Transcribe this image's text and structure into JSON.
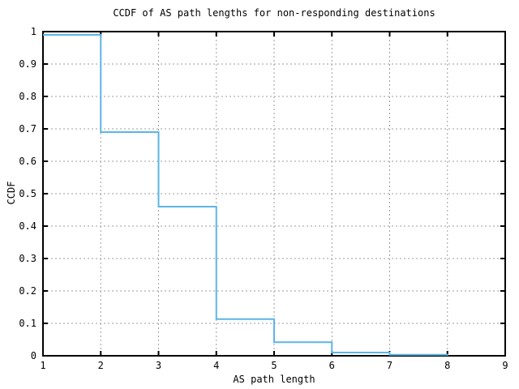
{
  "page": {
    "background": "#ffffff"
  },
  "chart_data": {
    "type": "line",
    "subtype": "step-function-ccdf",
    "title": "CCDF of AS path lengths for non-responding destinations",
    "xlabel": "AS path length",
    "ylabel": "CCDF",
    "xlim": [
      1,
      9
    ],
    "ylim": [
      0,
      1
    ],
    "xticks": {
      "values": [
        1,
        2,
        3,
        4,
        5,
        6,
        7,
        8,
        9
      ],
      "labels": [
        "1",
        "2",
        "3",
        "4",
        "5",
        "6",
        "7",
        "8",
        "9"
      ]
    },
    "yticks": {
      "values": [
        0,
        0.1,
        0.2,
        0.3,
        0.4,
        0.5,
        0.6,
        0.7,
        0.8,
        0.9,
        1
      ],
      "labels": [
        "0",
        "0.1",
        "0.2",
        "0.3",
        "0.4",
        "0.5",
        "0.6",
        "0.7",
        "0.8",
        "0.9",
        "1"
      ]
    },
    "grid": "dashed",
    "legend_position": "none",
    "series": [
      {
        "name": "ccdf-as-path-length",
        "style": "steps",
        "color": "#5bb5e6",
        "points": [
          {
            "x": 1,
            "y": 0.99
          },
          {
            "x": 2,
            "y": 0.69
          },
          {
            "x": 3,
            "y": 0.46
          },
          {
            "x": 4,
            "y": 0.113
          },
          {
            "x": 5,
            "y": 0.042
          },
          {
            "x": 6,
            "y": 0.01
          },
          {
            "x": 7,
            "y": 0.003
          },
          {
            "x": 8,
            "y": 0
          }
        ]
      }
    ],
    "colors": {
      "line": "#5bb5e6",
      "grid": "#9e9e9e",
      "border": "#000000",
      "text": "#000000",
      "background": "#ffffff"
    }
  }
}
